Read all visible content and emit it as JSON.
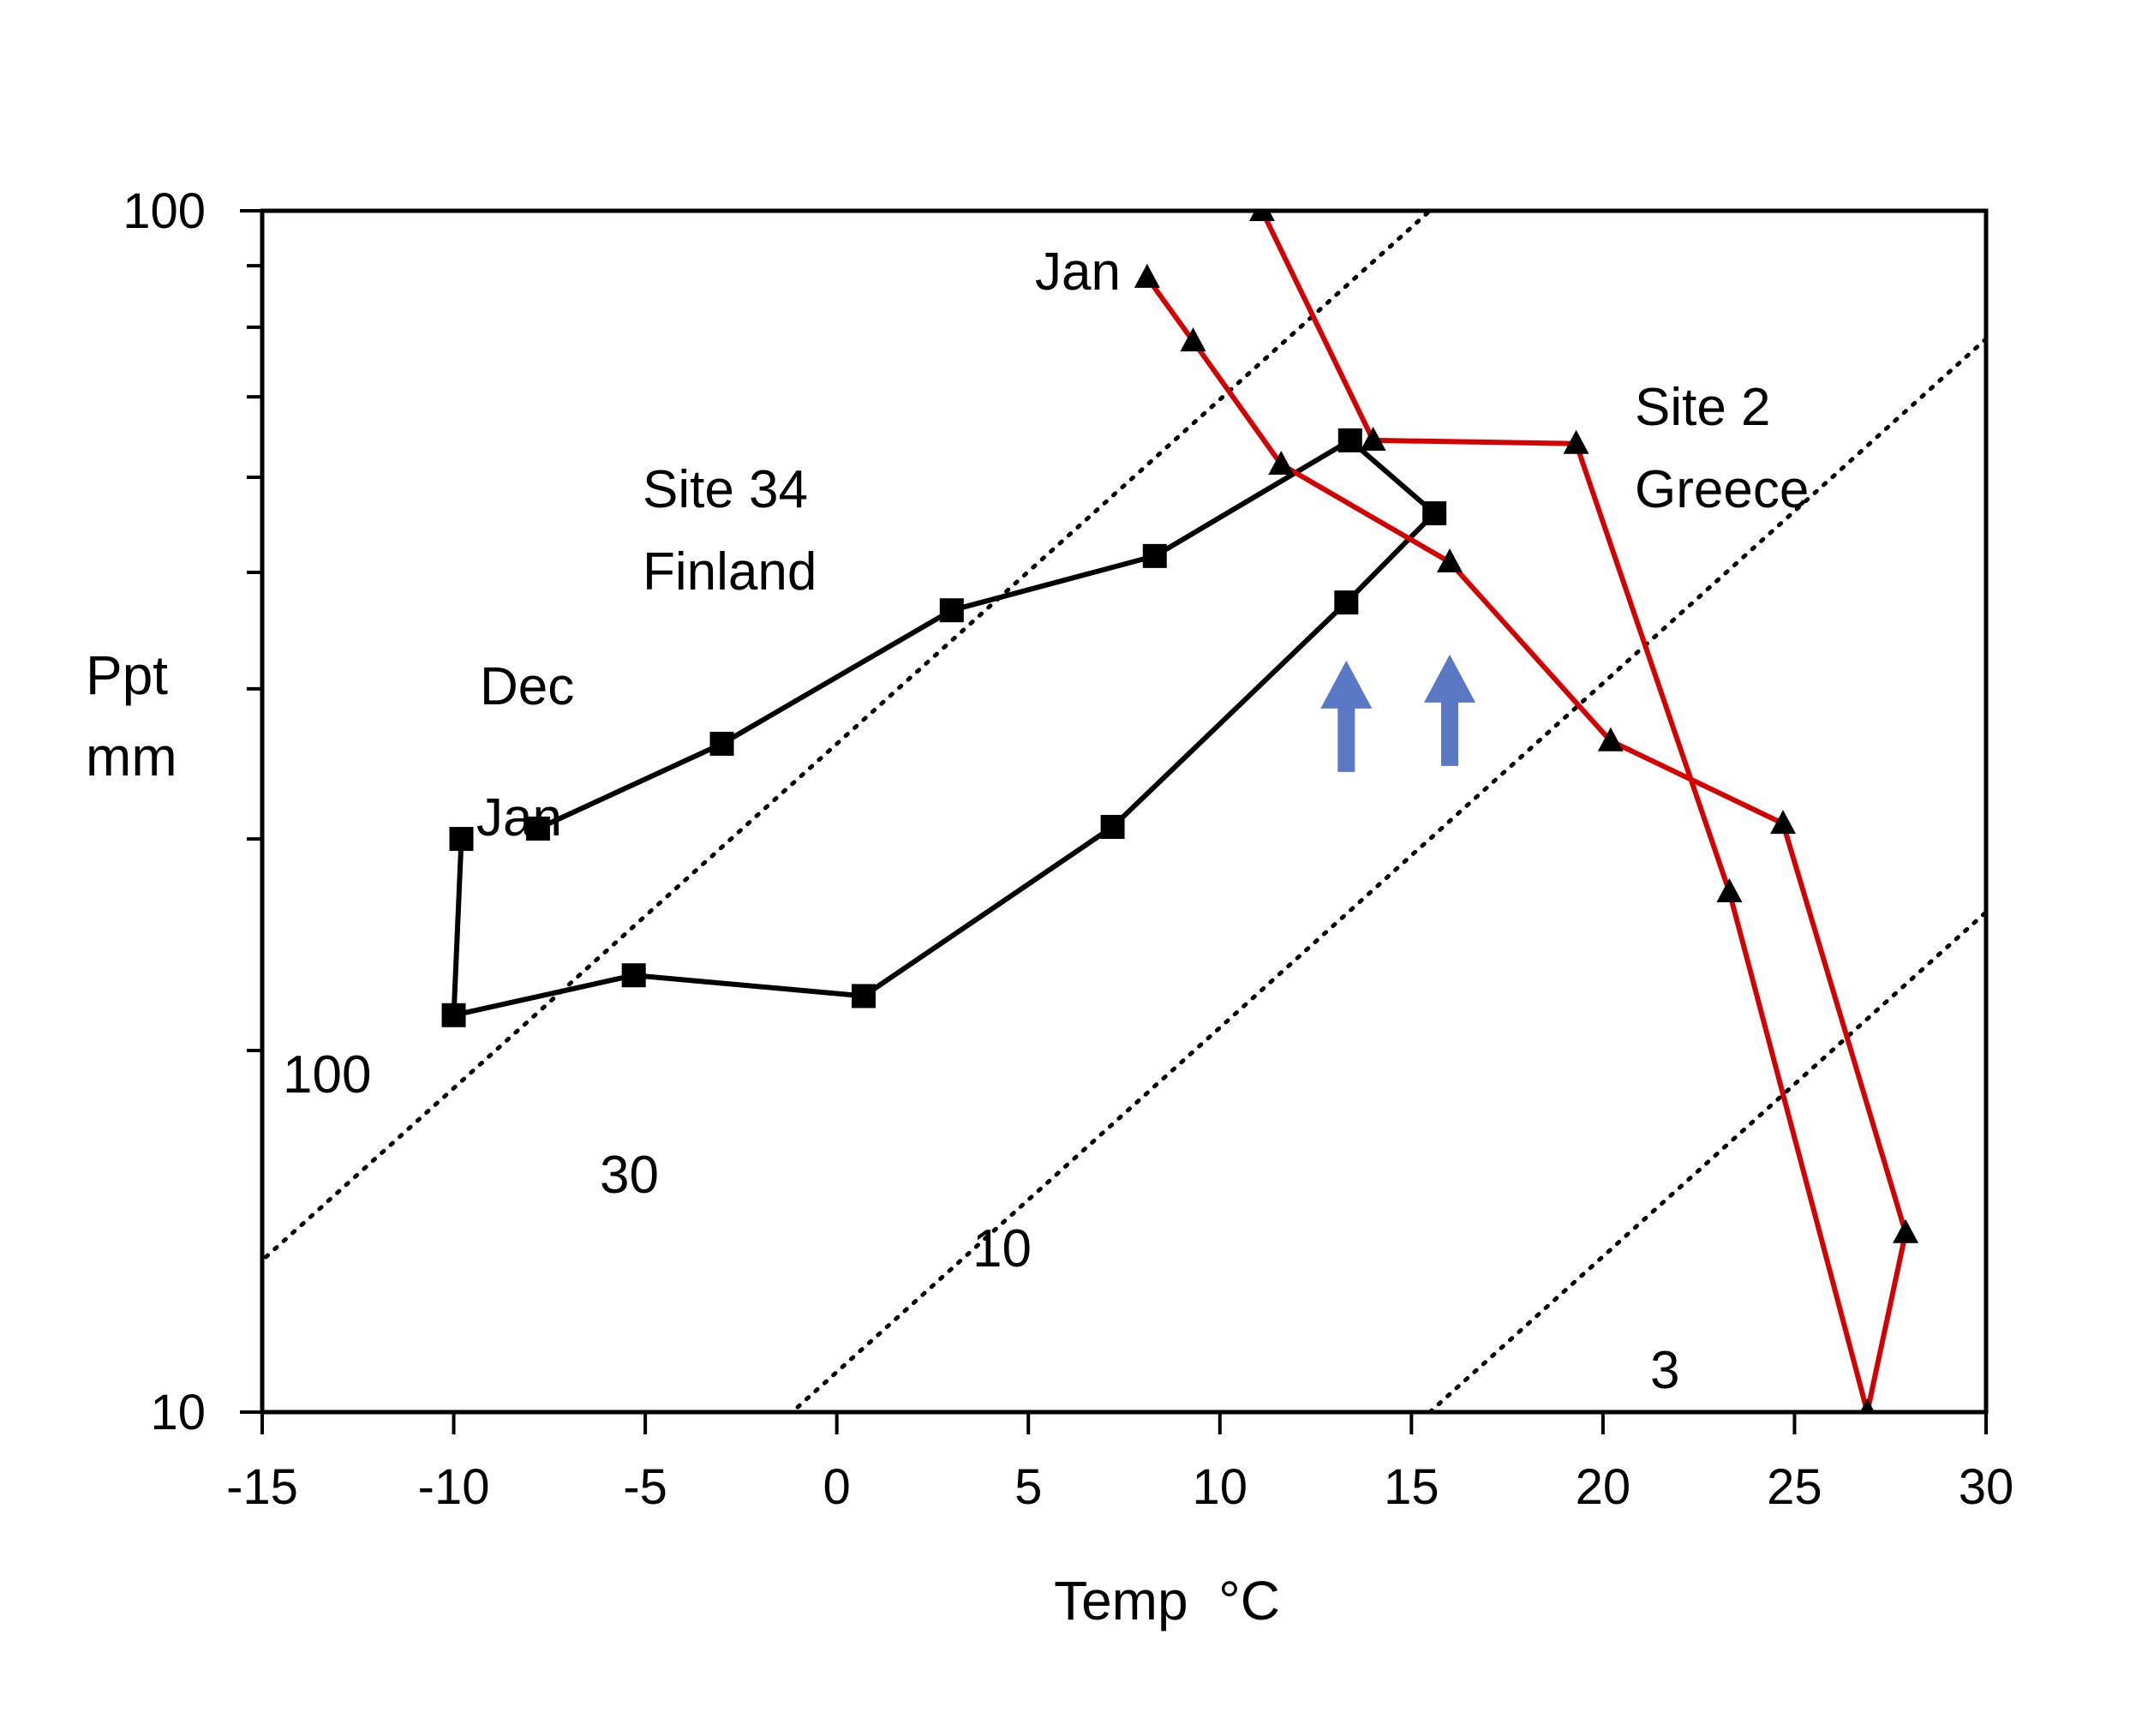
{
  "chart_data": {
    "type": "line",
    "title": "",
    "xlabel": "Temp  °C",
    "ylabel_lines": [
      "Ppt",
      "mm"
    ],
    "xlim": [
      -15,
      30
    ],
    "ylim": [
      10,
      100
    ],
    "yscale": "log",
    "x_ticks": [
      -15,
      -10,
      -5,
      0,
      5,
      10,
      15,
      20,
      25,
      30
    ],
    "x_tick_labels": [
      "-15",
      "-10",
      "-5",
      "0",
      "5",
      "10",
      "15",
      "20",
      "25",
      "30"
    ],
    "y_tick_labels": [
      "100",
      "10"
    ],
    "y_tick_values": [
      100,
      10
    ],
    "series": [
      {
        "name": "Site 34 Finland",
        "color": "#000000",
        "marker": "square",
        "points": [
          {
            "x": -9.8,
            "y": 30.0
          },
          {
            "x": -10.0,
            "y": 21.4
          },
          {
            "x": -5.3,
            "y": 23.1
          },
          {
            "x": 0.7,
            "y": 22.2
          },
          {
            "x": 7.2,
            "y": 30.7
          },
          {
            "x": 13.3,
            "y": 47.2
          },
          {
            "x": 15.6,
            "y": 56.0
          },
          {
            "x": 13.4,
            "y": 64.4
          },
          {
            "x": 8.3,
            "y": 51.6
          },
          {
            "x": 3.0,
            "y": 46.5
          },
          {
            "x": -3.0,
            "y": 36.0
          },
          {
            "x": -7.8,
            "y": 30.6
          }
        ]
      },
      {
        "name": "Site 2 Greece",
        "color": "#d40000",
        "marker": "triangle",
        "points": [
          {
            "x": 8.1,
            "y": 88.0
          },
          {
            "x": 9.3,
            "y": 77.9
          },
          {
            "x": 11.6,
            "y": 61.5
          },
          {
            "x": 16.0,
            "y": 51.0
          },
          {
            "x": 20.2,
            "y": 36.2
          },
          {
            "x": 24.7,
            "y": 30.9
          },
          {
            "x": 27.9,
            "y": 14.1
          },
          {
            "x": 26.9,
            "y": 10.0
          },
          {
            "x": 23.3,
            "y": 27.1
          },
          {
            "x": 19.3,
            "y": 64.0
          },
          {
            "x": 14.0,
            "y": 64.4
          },
          {
            "x": 11.1,
            "y": 100.0
          }
        ]
      }
    ],
    "contours": [
      {
        "label": "100",
        "ratio": 100
      },
      {
        "label": "30",
        "ratio": 30
      },
      {
        "label": "10",
        "ratio": 10
      },
      {
        "label": "3",
        "ratio": 3
      }
    ],
    "annotations": {
      "finland_name": "Site 34",
      "finland_country": "Finland",
      "finland_dec": "Dec",
      "finland_jan": "Jan",
      "greece_name": "Site 2",
      "greece_country": "Greece",
      "greece_jan": "Jan"
    },
    "arrows": [
      {
        "x": 13.3,
        "y": 43.5,
        "color": "#5b78c4"
      },
      {
        "x": 16.0,
        "y": 44.0,
        "color": "#5b78c4"
      }
    ]
  }
}
